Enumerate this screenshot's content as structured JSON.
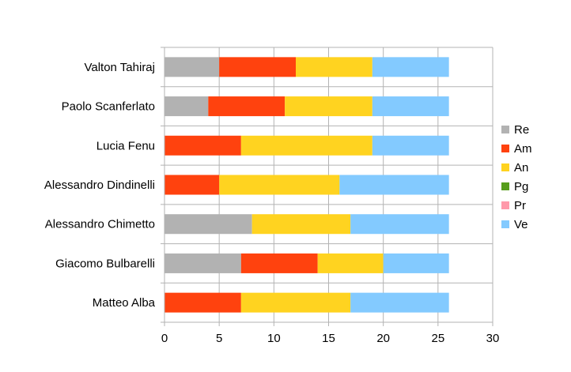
{
  "chart_data": {
    "type": "bar",
    "orientation": "horizontal",
    "stacked": true,
    "title": "",
    "xlabel": "",
    "ylabel": "",
    "categories": [
      "Valton Tahiraj",
      "Paolo Scanferlato",
      "Lucia Fenu",
      "Alessandro Dindinelli",
      "Alessandro Chimetto",
      "Giacomo Bulbarelli",
      "Matteo Alba"
    ],
    "series": [
      {
        "name": "Re",
        "color": "#b2b2b2",
        "values": [
          5,
          4,
          0,
          0,
          8,
          7,
          0
        ]
      },
      {
        "name": "Am",
        "color": "#ff420e",
        "values": [
          7,
          7,
          7,
          5,
          0,
          7,
          7
        ]
      },
      {
        "name": "An",
        "color": "#ffd320",
        "values": [
          7,
          8,
          12,
          11,
          9,
          6,
          10
        ]
      },
      {
        "name": "Pg",
        "color": "#579d1c",
        "values": [
          0,
          0,
          0,
          0,
          0,
          0,
          0
        ]
      },
      {
        "name": "Pr",
        "color": "#ff99aa",
        "values": [
          0,
          0,
          0,
          0,
          0,
          0,
          0
        ]
      },
      {
        "name": "Ve",
        "color": "#83caff",
        "values": [
          7,
          7,
          7,
          10,
          9,
          6,
          9
        ]
      }
    ],
    "xlim": [
      0,
      30
    ],
    "xticks": [
      0,
      5,
      10,
      15,
      20,
      25,
      30
    ],
    "grid": true,
    "legend": "right"
  }
}
